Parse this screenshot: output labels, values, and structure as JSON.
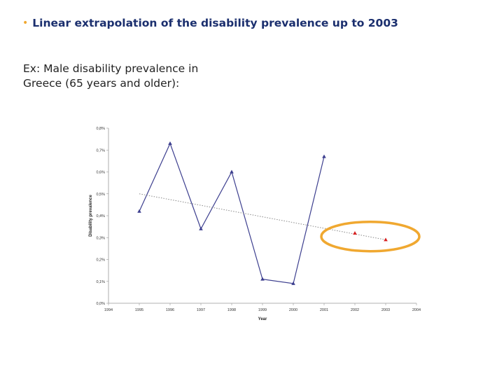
{
  "slide": {
    "bullet": "•",
    "heading": "Linear extrapolation of the disability prevalence up to 2003",
    "subtext_line1": "Ex: Male disability prevalence in",
    "subtext_line2": "Greece (65 years and older):"
  },
  "colors": {
    "heading": "#1b2f6e",
    "bullet": "#f0a830",
    "series_observed": "#3d3f8f",
    "series_trend": "#888888",
    "extrapolated_marker": "#d62020",
    "highlight_ellipse": "#f0a830"
  },
  "chart_data": {
    "type": "line",
    "title": "",
    "xlabel": "Year",
    "ylabel": "Disability prevalence",
    "xlim": [
      1994,
      2004
    ],
    "ylim": [
      0,
      0.8
    ],
    "x_ticks": [
      "1994",
      "1995",
      "1996",
      "1997",
      "1998",
      "1999",
      "2000",
      "2001",
      "2002",
      "2003",
      "2004"
    ],
    "y_ticks": [
      "0,0%",
      "0,1%",
      "0,2%",
      "0,3%",
      "0,4%",
      "0,5%",
      "0,6%",
      "0,7%",
      "0,8%"
    ],
    "grid": false,
    "series": [
      {
        "role": "observed",
        "marker": "triangle",
        "x": [
          1995,
          1996,
          1997,
          1998,
          1999,
          2000,
          2001
        ],
        "y": [
          0.42,
          0.73,
          0.34,
          0.6,
          0.11,
          0.09,
          0.67
        ]
      },
      {
        "role": "trend",
        "style": "dotted",
        "x": [
          1995,
          2003
        ],
        "y": [
          0.5,
          0.29
        ]
      },
      {
        "role": "extrapolated",
        "marker": "triangle",
        "x": [
          2002,
          2003
        ],
        "y": [
          0.32,
          0.29
        ]
      }
    ],
    "highlight": {
      "shape": "ellipse",
      "around": [
        2002,
        2003
      ]
    }
  }
}
